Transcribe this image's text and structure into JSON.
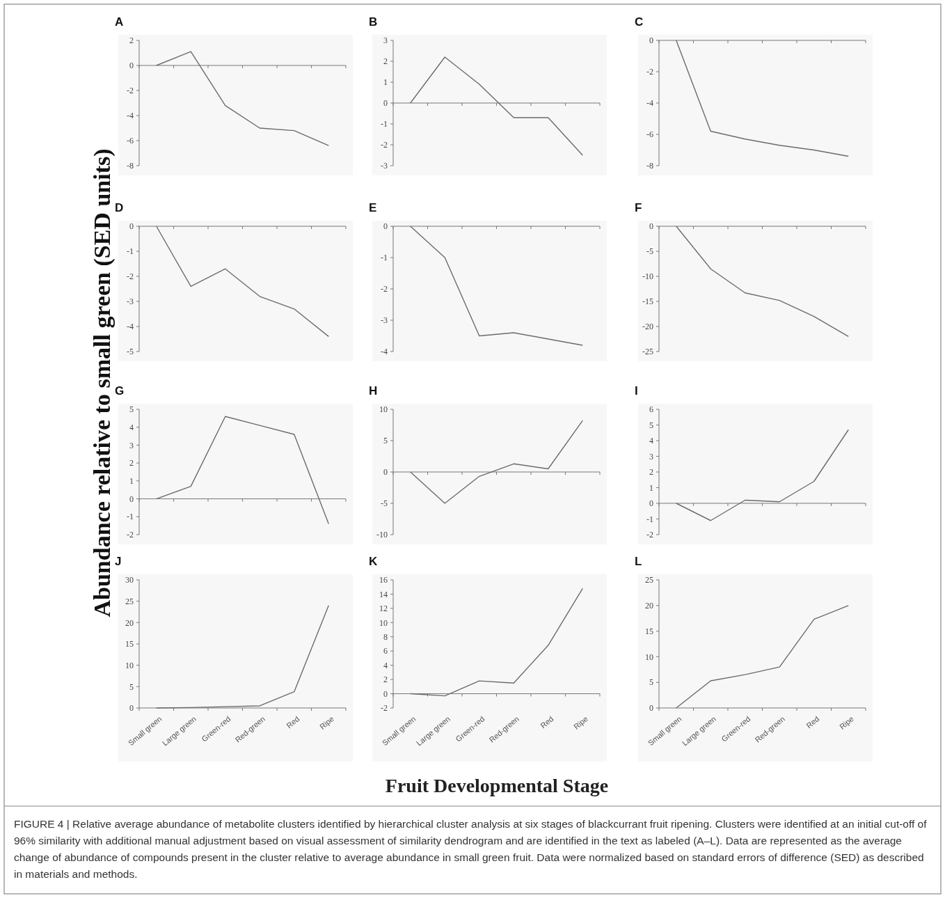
{
  "chart_data": [
    {
      "type": "line",
      "title": "A",
      "categories": [
        null,
        null,
        null,
        null,
        null,
        null
      ],
      "values": [
        0,
        1.1,
        -3.2,
        -5.0,
        -5.2,
        -6.4
      ],
      "color": "#6b6b6b",
      "ylim": [
        -8,
        2
      ],
      "yticks": [
        -8,
        -6,
        -4,
        -2,
        0,
        2
      ],
      "tick_labels": "y"
    },
    {
      "type": "line",
      "title": "B",
      "categories": [
        null,
        null,
        null,
        null,
        null,
        null
      ],
      "values": [
        0,
        2.2,
        0.9,
        -0.7,
        -0.7,
        -2.5
      ],
      "color": "#6b6b6b",
      "ylim": [
        -3,
        3
      ],
      "yticks": [
        -3,
        -2,
        -1,
        0,
        1,
        2,
        3
      ],
      "tick_labels": "y"
    },
    {
      "type": "line",
      "title": "C",
      "categories": [
        null,
        null,
        null,
        null,
        null,
        null
      ],
      "values": [
        0,
        -5.8,
        -6.3,
        -6.7,
        -7.0,
        -7.4
      ],
      "color": "#6b6b6b",
      "ylim": [
        -8,
        0
      ],
      "yticks": [
        -8,
        -6,
        -4,
        -2,
        0
      ],
      "tick_labels": "y"
    },
    {
      "type": "line",
      "title": "D",
      "categories": [
        null,
        null,
        null,
        null,
        null,
        null
      ],
      "values": [
        0,
        -2.4,
        -1.7,
        -2.8,
        -3.3,
        -4.4
      ],
      "color": "#6b6b6b",
      "ylim": [
        -5,
        0
      ],
      "yticks": [
        -5,
        -4,
        -3,
        -2,
        -1,
        0
      ],
      "tick_labels": "y"
    },
    {
      "type": "line",
      "title": "E",
      "categories": [
        null,
        null,
        null,
        null,
        null,
        null
      ],
      "values": [
        0,
        -1.0,
        -3.5,
        -3.4,
        -3.6,
        -3.8
      ],
      "color": "#6b6b6b",
      "ylim": [
        -4,
        0
      ],
      "yticks": [
        -4,
        -3,
        -2,
        -1,
        0
      ],
      "tick_labels": "y"
    },
    {
      "type": "line",
      "title": "F",
      "categories": [
        null,
        null,
        null,
        null,
        null,
        null
      ],
      "values": [
        0,
        -8.5,
        -13.3,
        -14.8,
        -18,
        -22
      ],
      "color": "#6b6b6b",
      "ylim": [
        -25,
        0
      ],
      "yticks": [
        -25,
        -20,
        -15,
        -10,
        -5,
        0
      ],
      "tick_labels": "y"
    },
    {
      "type": "line",
      "title": "G",
      "categories": [
        null,
        null,
        null,
        null,
        null,
        null
      ],
      "values": [
        0,
        0.7,
        4.6,
        4.1,
        3.6,
        -1.4
      ],
      "color": "#6b6b6b",
      "ylim": [
        -2,
        5
      ],
      "yticks": [
        -2,
        -1,
        0,
        1,
        2,
        3,
        4,
        5
      ],
      "tick_labels": "y"
    },
    {
      "type": "line",
      "title": "H",
      "categories": [
        null,
        null,
        null,
        null,
        null,
        null
      ],
      "values": [
        0,
        -5,
        -0.7,
        1.3,
        0.5,
        8.2
      ],
      "color": "#6b6b6b",
      "ylim": [
        -10,
        10
      ],
      "yticks": [
        -10,
        -5,
        0,
        5,
        10
      ],
      "tick_labels": "y"
    },
    {
      "type": "line",
      "title": "I",
      "categories": [
        null,
        null,
        null,
        null,
        null,
        null
      ],
      "values": [
        0,
        -1.1,
        0.2,
        0.1,
        1.4,
        4.7
      ],
      "color": "#6b6b6b",
      "ylim": [
        -2,
        6
      ],
      "yticks": [
        -2,
        -1,
        0,
        1,
        2,
        3,
        4,
        5,
        6
      ],
      "tick_labels": "y"
    },
    {
      "type": "line",
      "title": "J",
      "categories": [
        "Small green",
        "Large green",
        "Green-red",
        "Red-green",
        "Red",
        "Ripe"
      ],
      "values": [
        0,
        0.1,
        0.3,
        0.5,
        3.8,
        24
      ],
      "color": "#6b6b6b",
      "ylim": [
        0,
        30
      ],
      "yticks": [
        0,
        5,
        10,
        15,
        20,
        25,
        30
      ]
    },
    {
      "type": "line",
      "title": "K",
      "categories": [
        "Small green",
        "Large green",
        "Green-red",
        "Red-green",
        "Red",
        "Ripe"
      ],
      "values": [
        0,
        -0.3,
        1.8,
        1.5,
        6.8,
        14.8
      ],
      "color": "#6b6b6b",
      "ylim": [
        -2,
        16
      ],
      "yticks": [
        -2,
        0,
        2,
        4,
        6,
        8,
        10,
        12,
        14,
        16
      ]
    },
    {
      "type": "line",
      "title": "L",
      "categories": [
        "Small green",
        "Large green",
        "Green-red",
        "Red-green",
        "Red",
        "Ripe"
      ],
      "values": [
        0,
        5.3,
        6.5,
        8,
        17.3,
        20
      ],
      "color": "#6b6b6b",
      "ylim": [
        0,
        25
      ],
      "yticks": [
        0,
        5,
        10,
        15,
        20,
        25
      ]
    },
    {
      "type": "other",
      "ylabel": "Abundance relative to small green (SED units)",
      "xlabel": "Fruit Developmental Stage",
      "annotations": [
        "FIGURE 4 | Relative average abundance of metabolite clusters identified by hierarchical cluster analysis at six stages of blackcurrant fruit ripening. Clusters were identified at an initial cut-off of 96% similarity with additional manual adjustment based on visual assessment of similarity dendrogram and are identified in the text as labeled (A–L). Data are represented as the average change of abundance of compounds present in the cluster relative to average abundance in small green fruit. Data were normalized based on standard errors of difference (SED) as described in materials and methods."
      ]
    }
  ]
}
